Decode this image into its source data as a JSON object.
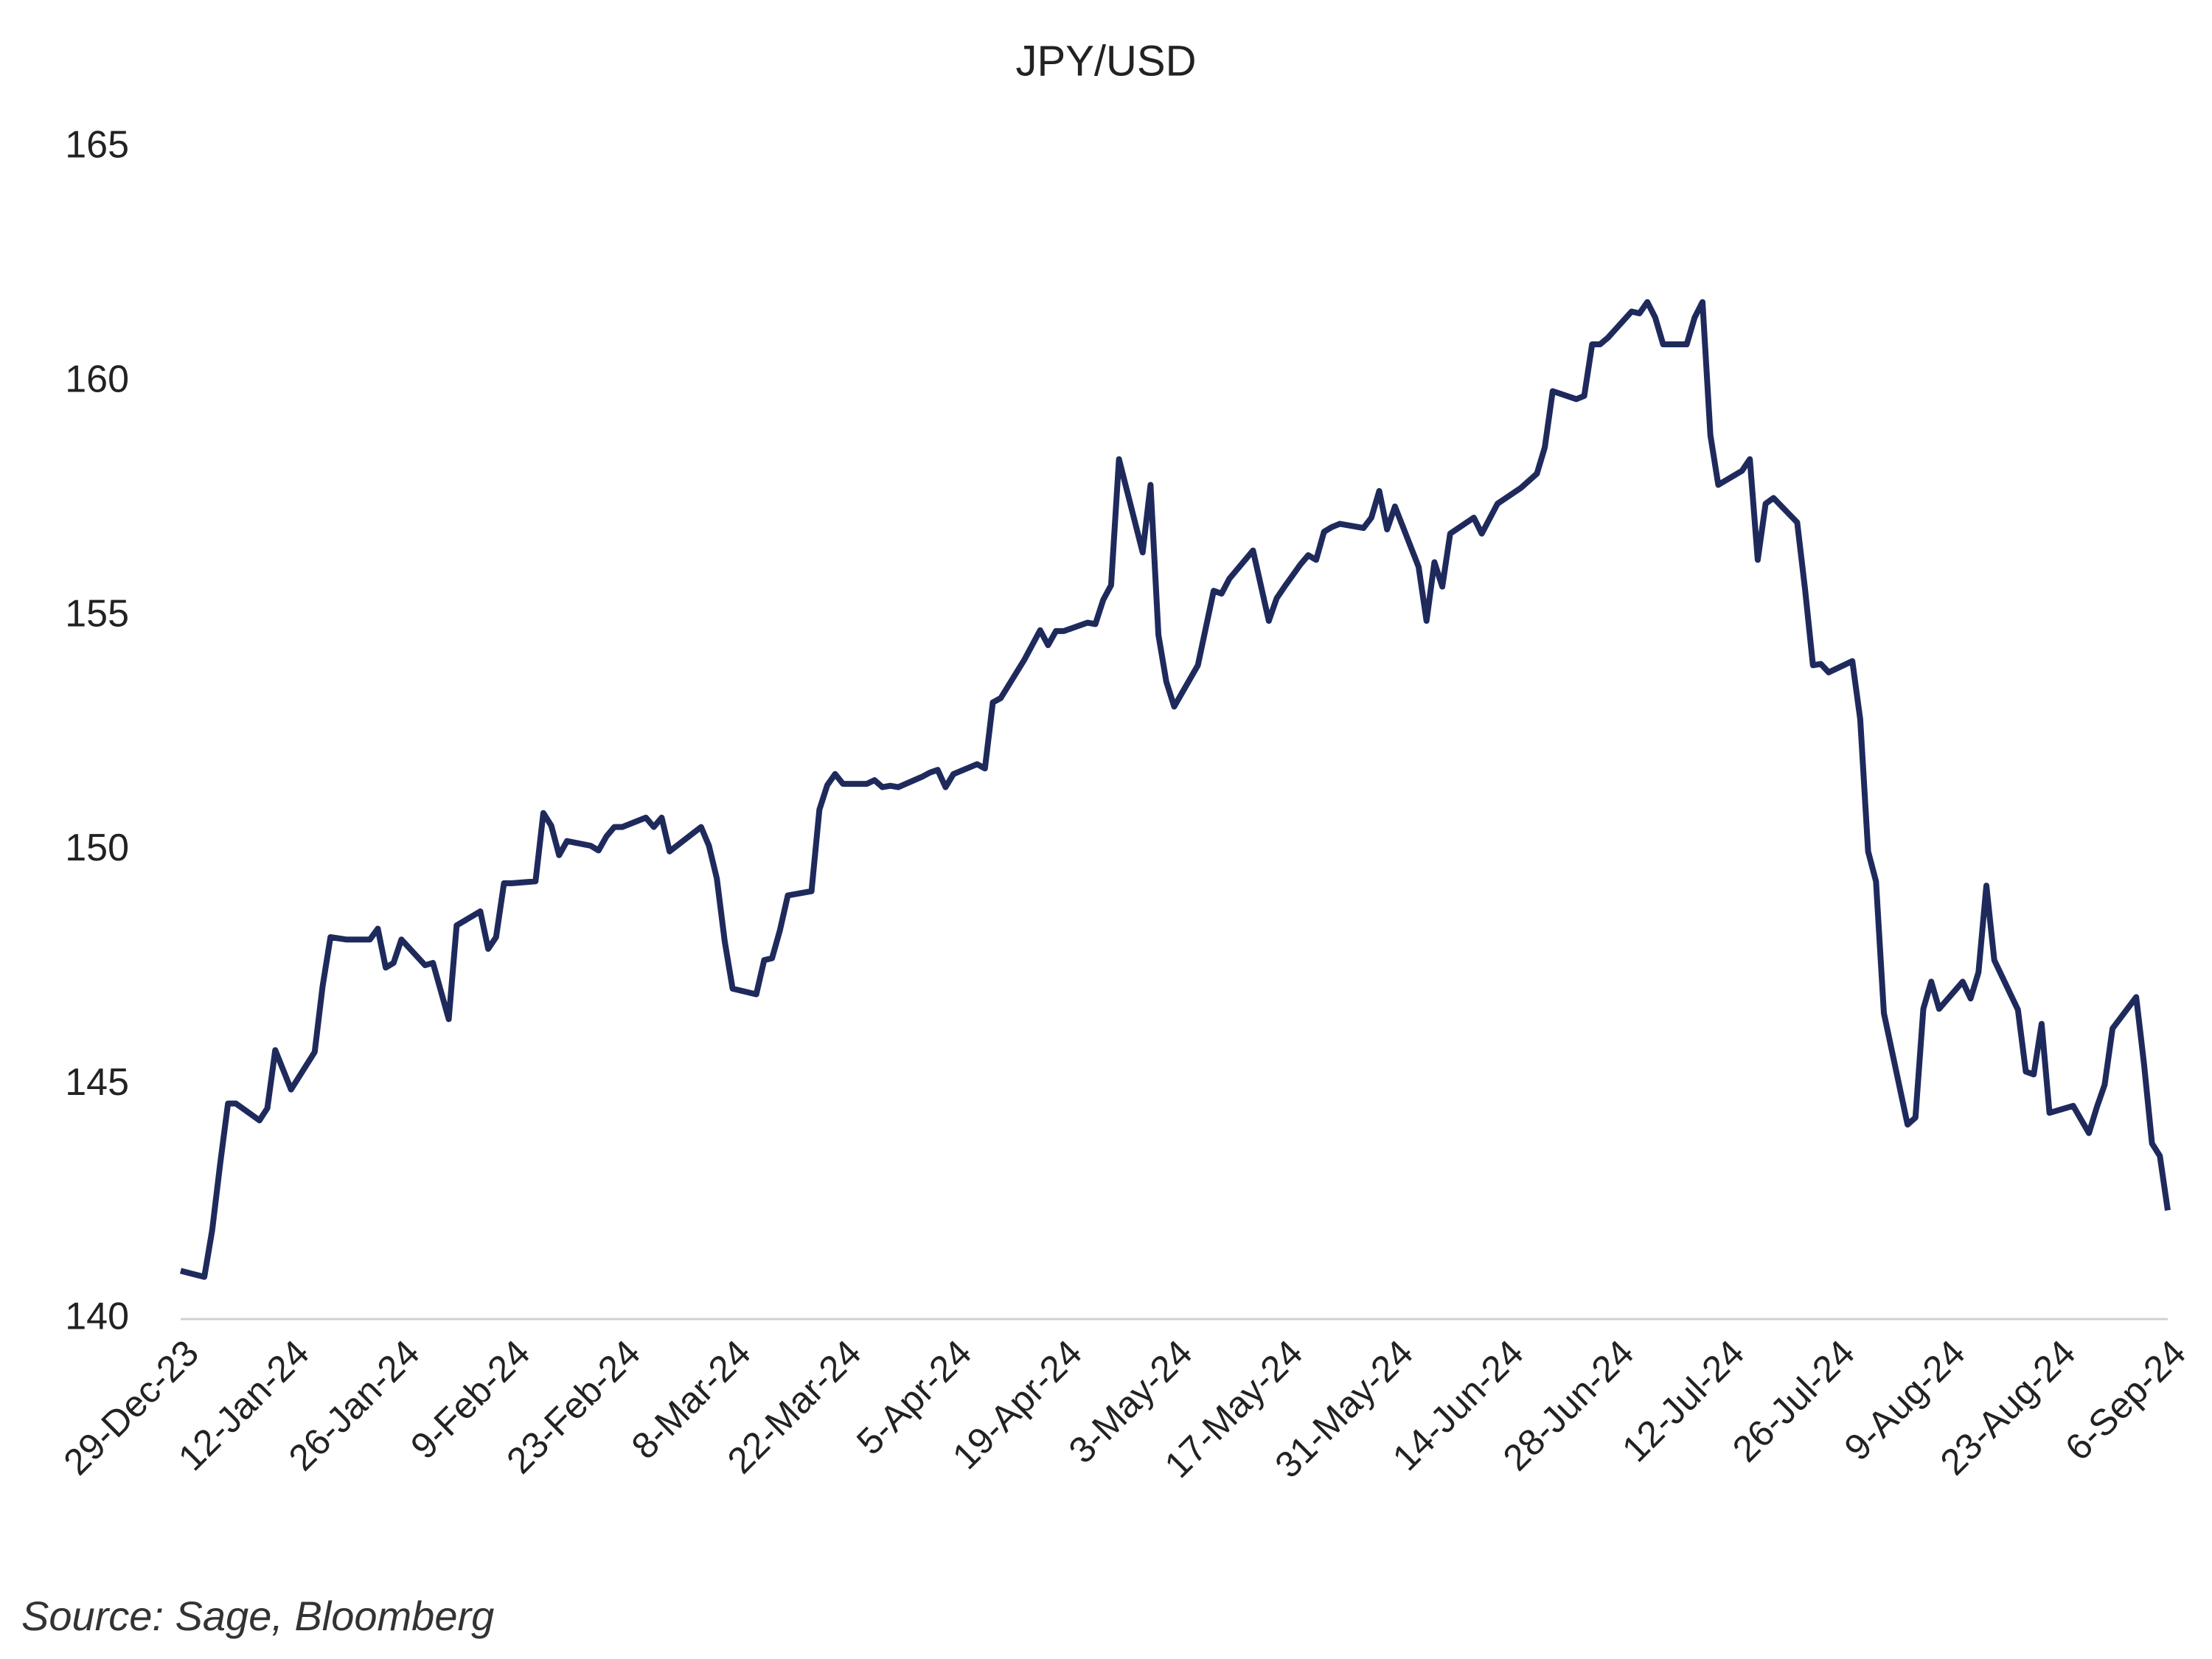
{
  "chart_data": {
    "type": "line",
    "title": "JPY/USD",
    "source": "Source: Sage, Bloomberg",
    "ylim": [
      140,
      165
    ],
    "yticks": [
      140,
      145,
      150,
      155,
      160,
      165
    ],
    "grid": false,
    "xlim": [
      "2023-12-29",
      "2024-09-06"
    ],
    "xticks": [
      {
        "value": "2023-12-29",
        "label": "29-Dec-23"
      },
      {
        "value": "2024-01-12",
        "label": "12-Jan-24"
      },
      {
        "value": "2024-01-26",
        "label": "26-Jan-24"
      },
      {
        "value": "2024-02-09",
        "label": "9-Feb-24"
      },
      {
        "value": "2024-02-23",
        "label": "23-Feb-24"
      },
      {
        "value": "2024-03-08",
        "label": "8-Mar-24"
      },
      {
        "value": "2024-03-22",
        "label": "22-Mar-24"
      },
      {
        "value": "2024-04-05",
        "label": "5-Apr-24"
      },
      {
        "value": "2024-04-19",
        "label": "19-Apr-24"
      },
      {
        "value": "2024-05-03",
        "label": "3-May-24"
      },
      {
        "value": "2024-05-17",
        "label": "17-May-24"
      },
      {
        "value": "2024-05-31",
        "label": "31-May-24"
      },
      {
        "value": "2024-06-14",
        "label": "14-Jun-24"
      },
      {
        "value": "2024-06-28",
        "label": "28-Jun-24"
      },
      {
        "value": "2024-07-12",
        "label": "12-Jul-24"
      },
      {
        "value": "2024-07-26",
        "label": "26-Jul-24"
      },
      {
        "value": "2024-08-09",
        "label": "9-Aug-24"
      },
      {
        "value": "2024-08-23",
        "label": "23-Aug-24"
      },
      {
        "value": "2024-09-06",
        "label": "6-Sep-24"
      }
    ],
    "x": [
      "2023-12-29",
      "2024-01-01",
      "2024-01-02",
      "2024-01-03",
      "2024-01-04",
      "2024-01-05",
      "2024-01-08",
      "2024-01-09",
      "2024-01-10",
      "2024-01-12",
      "2024-01-15",
      "2024-01-16",
      "2024-01-17",
      "2024-01-19",
      "2024-01-22",
      "2024-01-23",
      "2024-01-24",
      "2024-01-25",
      "2024-01-26",
      "2024-01-29",
      "2024-01-30",
      "2024-01-31",
      "2024-02-01",
      "2024-02-02",
      "2024-02-05",
      "2024-02-06",
      "2024-02-07",
      "2024-02-08",
      "2024-02-09",
      "2024-02-12",
      "2024-02-13",
      "2024-02-14",
      "2024-02-15",
      "2024-02-16",
      "2024-02-19",
      "2024-02-20",
      "2024-02-21",
      "2024-02-22",
      "2024-02-23",
      "2024-02-26",
      "2024-02-27",
      "2024-02-28",
      "2024-02-29",
      "2024-03-04",
      "2024-03-05",
      "2024-03-06",
      "2024-03-07",
      "2024-03-08",
      "2024-03-11",
      "2024-03-12",
      "2024-03-13",
      "2024-03-14",
      "2024-03-15",
      "2024-03-18",
      "2024-03-19",
      "2024-03-20",
      "2024-03-21",
      "2024-03-22",
      "2024-03-25",
      "2024-03-26",
      "2024-03-27",
      "2024-03-28",
      "2024-03-29",
      "2024-04-01",
      "2024-04-02",
      "2024-04-03",
      "2024-04-04",
      "2024-04-05",
      "2024-04-08",
      "2024-04-09",
      "2024-04-10",
      "2024-04-11",
      "2024-04-14",
      "2024-04-16",
      "2024-04-17",
      "2024-04-18",
      "2024-04-19",
      "2024-04-22",
      "2024-04-23",
      "2024-04-24",
      "2024-04-25",
      "2024-04-26",
      "2024-04-29",
      "2024-04-30",
      "2024-05-01",
      "2024-05-02",
      "2024-05-03",
      "2024-05-06",
      "2024-05-08",
      "2024-05-09",
      "2024-05-10",
      "2024-05-13",
      "2024-05-15",
      "2024-05-16",
      "2024-05-17",
      "2024-05-19",
      "2024-05-20",
      "2024-05-21",
      "2024-05-22",
      "2024-05-23",
      "2024-05-24",
      "2024-05-27",
      "2024-05-28",
      "2024-05-29",
      "2024-05-30",
      "2024-05-31",
      "2024-06-03",
      "2024-06-04",
      "2024-06-05",
      "2024-06-06",
      "2024-06-07",
      "2024-06-10",
      "2024-06-11",
      "2024-06-13",
      "2024-06-16",
      "2024-06-18",
      "2024-06-19",
      "2024-06-20",
      "2024-06-23",
      "2024-06-24",
      "2024-06-25",
      "2024-06-26",
      "2024-06-27",
      "2024-06-30",
      "2024-07-01",
      "2024-07-02",
      "2024-07-03",
      "2024-07-04",
      "2024-07-07",
      "2024-07-08",
      "2024-07-09",
      "2024-07-10",
      "2024-07-11",
      "2024-07-14",
      "2024-07-15",
      "2024-07-16",
      "2024-07-17",
      "2024-07-18",
      "2024-07-21",
      "2024-07-22",
      "2024-07-23",
      "2024-07-24",
      "2024-07-25",
      "2024-07-28",
      "2024-07-29",
      "2024-07-30",
      "2024-07-31",
      "2024-08-01",
      "2024-08-04",
      "2024-08-05",
      "2024-08-06",
      "2024-08-07",
      "2024-08-08",
      "2024-08-11",
      "2024-08-12",
      "2024-08-13",
      "2024-08-14",
      "2024-08-15",
      "2024-08-18",
      "2024-08-19",
      "2024-08-20",
      "2024-08-21",
      "2024-08-22",
      "2024-08-25",
      "2024-08-27",
      "2024-08-28",
      "2024-08-29",
      "2024-08-30",
      "2024-09-02",
      "2024-09-03",
      "2024-09-04",
      "2024-09-05",
      "2024-09-06"
    ],
    "series": [
      {
        "name": "JPY/USD",
        "color": "#1f2a5c",
        "values": [
          141.03,
          140.9,
          141.9,
          143.3,
          144.6,
          144.6,
          144.24,
          144.5,
          145.74,
          144.9,
          145.7,
          147.1,
          148.15,
          148.1,
          148.1,
          148.33,
          147.5,
          147.6,
          148.1,
          147.55,
          147.6,
          147.0,
          146.4,
          148.4,
          148.7,
          147.9,
          148.15,
          149.3,
          149.3,
          149.34,
          150.8,
          150.53,
          149.9,
          150.2,
          150.1,
          150.0,
          150.3,
          150.5,
          150.5,
          150.7,
          150.5,
          150.7,
          149.98,
          150.5,
          150.1,
          149.4,
          148.06,
          147.05,
          146.93,
          147.66,
          147.7,
          148.3,
          149.04,
          149.13,
          150.87,
          151.39,
          151.63,
          151.42,
          151.42,
          151.5,
          151.35,
          151.38,
          151.35,
          151.57,
          151.66,
          151.72,
          151.35,
          151.63,
          151.84,
          151.75,
          153.16,
          153.25,
          154.07,
          154.7,
          154.38,
          154.68,
          154.68,
          154.86,
          154.83,
          155.35,
          155.66,
          158.35,
          156.36,
          157.8,
          154.6,
          153.6,
          153.07,
          153.95,
          155.54,
          155.48,
          155.8,
          156.4,
          154.9,
          155.38,
          155.63,
          156.1,
          156.3,
          156.2,
          156.8,
          156.9,
          156.97,
          156.88,
          157.1,
          157.67,
          156.85,
          157.34,
          156.05,
          154.9,
          156.15,
          155.63,
          156.76,
          157.1,
          156.76,
          157.4,
          157.74,
          158.04,
          158.6,
          159.8,
          159.63,
          159.7,
          160.8,
          160.8,
          160.94,
          161.5,
          161.46,
          161.7,
          161.37,
          160.8,
          160.8,
          161.37,
          161.7,
          158.86,
          157.8,
          158.1,
          158.35,
          156.2,
          157.4,
          157.52,
          157.0,
          155.57,
          153.95,
          153.98,
          153.8,
          154.04,
          152.8,
          149.98,
          149.34,
          146.53,
          144.15,
          144.3,
          146.62,
          147.2,
          146.62,
          147.2,
          146.84,
          147.4,
          149.25,
          147.66,
          146.6,
          145.28,
          145.22,
          146.3,
          144.4,
          144.55,
          143.97,
          144.52,
          145.0,
          146.2,
          146.87,
          145.43,
          143.75,
          143.48,
          142.32
        ]
      }
    ]
  }
}
